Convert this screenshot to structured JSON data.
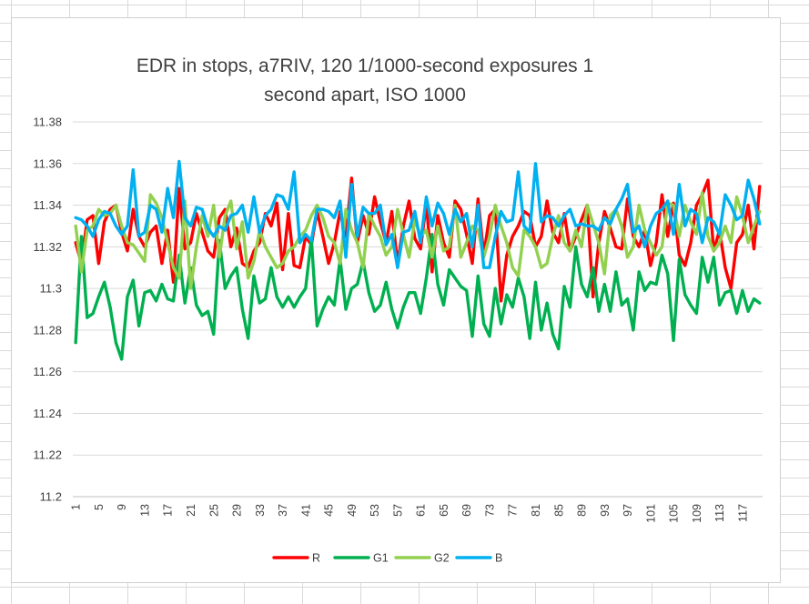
{
  "chart_data": {
    "type": "line",
    "title_lines": [
      "EDR in stops, a7RIV, 120 1/1000-second exposures 1",
      "second apart, ISO 1000"
    ],
    "xlabel": "",
    "ylabel": "",
    "ylim": [
      11.2,
      11.38
    ],
    "y_ticks": [
      "11.38",
      "11.36",
      "11.34",
      "11.32",
      "11.3",
      "11.28",
      "11.26",
      "11.24",
      "11.22",
      "11.2"
    ],
    "x_ticks": [
      "1",
      "5",
      "9",
      "13",
      "17",
      "21",
      "25",
      "29",
      "33",
      "37",
      "41",
      "45",
      "49",
      "53",
      "57",
      "61",
      "65",
      "69",
      "73",
      "77",
      "81",
      "85",
      "89",
      "93",
      "97",
      "101",
      "105",
      "109",
      "113",
      "117"
    ],
    "x_count": 120,
    "grid": "horizontal",
    "legend_position": "bottom",
    "series": [
      {
        "name": "R",
        "color": "#ff0000",
        "values": [
          11.322,
          11.312,
          11.333,
          11.335,
          11.312,
          11.332,
          11.338,
          11.34,
          11.327,
          11.318,
          11.338,
          11.325,
          11.32,
          11.327,
          11.33,
          11.312,
          11.328,
          11.303,
          11.348,
          11.319,
          11.322,
          11.336,
          11.327,
          11.318,
          11.315,
          11.334,
          11.338,
          11.32,
          11.329,
          11.312,
          11.31,
          11.318,
          11.322,
          11.336,
          11.33,
          11.341,
          11.309,
          11.336,
          11.311,
          11.31,
          11.325,
          11.321,
          11.337,
          11.325,
          11.312,
          11.322,
          11.337,
          11.325,
          11.353,
          11.322,
          11.335,
          11.326,
          11.344,
          11.332,
          11.322,
          11.337,
          11.312,
          11.33,
          11.342,
          11.324,
          11.319,
          11.341,
          11.308,
          11.335,
          11.322,
          11.315,
          11.342,
          11.338,
          11.326,
          11.312,
          11.343,
          11.316,
          11.335,
          11.338,
          11.294,
          11.316,
          11.325,
          11.33,
          11.337,
          11.335,
          11.32,
          11.325,
          11.342,
          11.327,
          11.322,
          11.336,
          11.318,
          11.325,
          11.333,
          11.34,
          11.296,
          11.322,
          11.337,
          11.329,
          11.32,
          11.319,
          11.343,
          11.325,
          11.32,
          11.328,
          11.311,
          11.322,
          11.345,
          11.325,
          11.341,
          11.316,
          11.311,
          11.322,
          11.34,
          11.345,
          11.352,
          11.318,
          11.328,
          11.31,
          11.3,
          11.322,
          11.326,
          11.34,
          11.319,
          11.349
        ]
      },
      {
        "name": "G1",
        "color": "#00b050",
        "values": [
          11.274,
          11.325,
          11.286,
          11.288,
          11.296,
          11.303,
          11.291,
          11.274,
          11.266,
          11.296,
          11.304,
          11.282,
          11.298,
          11.299,
          11.294,
          11.302,
          11.295,
          11.294,
          11.316,
          11.293,
          11.31,
          11.292,
          11.287,
          11.289,
          11.278,
          11.323,
          11.3,
          11.306,
          11.31,
          11.29,
          11.276,
          11.306,
          11.293,
          11.295,
          11.31,
          11.296,
          11.291,
          11.296,
          11.291,
          11.296,
          11.3,
          11.324,
          11.282,
          11.29,
          11.296,
          11.292,
          11.314,
          11.29,
          11.3,
          11.302,
          11.313,
          11.298,
          11.289,
          11.292,
          11.303,
          11.29,
          11.281,
          11.291,
          11.298,
          11.298,
          11.288,
          11.305,
          11.326,
          11.302,
          11.292,
          11.309,
          11.305,
          11.301,
          11.299,
          11.277,
          11.306,
          11.283,
          11.277,
          11.3,
          11.283,
          11.297,
          11.291,
          11.305,
          11.296,
          11.276,
          11.303,
          11.28,
          11.293,
          11.278,
          11.271,
          11.301,
          11.291,
          11.32,
          11.302,
          11.296,
          11.31,
          11.289,
          11.302,
          11.289,
          11.308,
          11.292,
          11.295,
          11.28,
          11.308,
          11.299,
          11.303,
          11.302,
          11.316,
          11.307,
          11.275,
          11.314,
          11.297,
          11.292,
          11.288,
          11.315,
          11.303,
          11.315,
          11.292,
          11.298,
          11.299,
          11.288,
          11.299,
          11.289,
          11.295,
          11.293
        ]
      },
      {
        "name": "G2",
        "color": "#92d050",
        "values": [
          11.33,
          11.308,
          11.328,
          11.33,
          11.338,
          11.335,
          11.336,
          11.34,
          11.33,
          11.322,
          11.321,
          11.317,
          11.313,
          11.345,
          11.341,
          11.334,
          11.322,
          11.31,
          11.305,
          11.342,
          11.3,
          11.32,
          11.335,
          11.325,
          11.34,
          11.315,
          11.335,
          11.342,
          11.319,
          11.332,
          11.305,
          11.313,
          11.328,
          11.32,
          11.315,
          11.31,
          11.312,
          11.318,
          11.32,
          11.325,
          11.328,
          11.335,
          11.34,
          11.334,
          11.325,
          11.322,
          11.312,
          11.338,
          11.328,
          11.322,
          11.31,
          11.336,
          11.33,
          11.325,
          11.316,
          11.32,
          11.338,
          11.326,
          11.315,
          11.333,
          11.325,
          11.328,
          11.315,
          11.33,
          11.318,
          11.32,
          11.34,
          11.315,
          11.322,
          11.33,
          11.328,
          11.315,
          11.325,
          11.34,
          11.33,
          11.322,
          11.31,
          11.306,
          11.328,
          11.325,
          11.32,
          11.31,
          11.312,
          11.325,
          11.335,
          11.322,
          11.318,
          11.328,
          11.32,
          11.34,
          11.331,
          11.322,
          11.307,
          11.335,
          11.338,
          11.33,
          11.315,
          11.32,
          11.34,
          11.328,
          11.322,
          11.316,
          11.32,
          11.341,
          11.34,
          11.325,
          11.34,
          11.332,
          11.326,
          11.346,
          11.325,
          11.318,
          11.322,
          11.33,
          11.322,
          11.344,
          11.335,
          11.322,
          11.33,
          11.337
        ]
      },
      {
        "name": "B",
        "color": "#00b0f0",
        "values": [
          11.334,
          11.333,
          11.33,
          11.325,
          11.333,
          11.337,
          11.336,
          11.33,
          11.326,
          11.33,
          11.357,
          11.325,
          11.327,
          11.34,
          11.338,
          11.327,
          11.348,
          11.334,
          11.361,
          11.334,
          11.33,
          11.339,
          11.338,
          11.329,
          11.325,
          11.33,
          11.328,
          11.335,
          11.336,
          11.34,
          11.327,
          11.344,
          11.327,
          11.335,
          11.338,
          11.345,
          11.344,
          11.338,
          11.356,
          11.322,
          11.326,
          11.323,
          11.338,
          11.338,
          11.337,
          11.334,
          11.342,
          11.315,
          11.35,
          11.325,
          11.339,
          11.336,
          11.336,
          11.34,
          11.321,
          11.326,
          11.31,
          11.327,
          11.328,
          11.337,
          11.322,
          11.344,
          11.33,
          11.341,
          11.336,
          11.326,
          11.338,
          11.332,
          11.336,
          11.32,
          11.34,
          11.31,
          11.31,
          11.325,
          11.337,
          11.332,
          11.333,
          11.356,
          11.33,
          11.327,
          11.36,
          11.332,
          11.335,
          11.334,
          11.33,
          11.335,
          11.338,
          11.33,
          11.331,
          11.33,
          11.33,
          11.328,
          11.334,
          11.331,
          11.338,
          11.343,
          11.35,
          11.327,
          11.33,
          11.32,
          11.33,
          11.336,
          11.338,
          11.342,
          11.326,
          11.35,
          11.33,
          11.338,
          11.336,
          11.322,
          11.334,
          11.332,
          11.326,
          11.345,
          11.34,
          11.333,
          11.335,
          11.352,
          11.343,
          11.331
        ]
      }
    ]
  }
}
